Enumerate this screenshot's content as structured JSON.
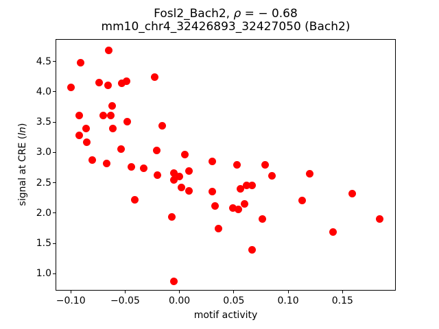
{
  "title": {
    "line1_prefix": "Fosl2_Bach2, ",
    "line1_rho": "ρ",
    "line1_suffix": " = − 0.68",
    "line2": "mm10_chr4_32426893_32427050 (Bach2)"
  },
  "axes": {
    "xlabel": "motif activity",
    "ylabel_prefix": "signal at CRE (",
    "ylabel_italic": "ln",
    "ylabel_suffix": ")"
  },
  "colors": {
    "marker": "#ff0000",
    "text": "#000000",
    "background": "#ffffff",
    "spine": "#000000"
  },
  "chart_data": {
    "type": "scatter",
    "title": "Fosl2_Bach2, ρ = − 0.68",
    "subtitle": "mm10_chr4_32426893_32427050 (Bach2)",
    "xlabel": "motif activity",
    "ylabel": "signal at CRE (ln)",
    "xlim": [
      -0.114,
      0.199
    ],
    "ylim": [
      0.72,
      4.87
    ],
    "xticks": [
      -0.1,
      -0.05,
      0.0,
      0.05,
      0.1,
      0.15
    ],
    "yticks": [
      1.0,
      1.5,
      2.0,
      2.5,
      3.0,
      3.5,
      4.0,
      4.5
    ],
    "grid": false,
    "legend": null,
    "marker_color": "#ff0000",
    "marker_diameter_px": 11,
    "points": [
      [
        -0.065,
        4.68
      ],
      [
        -0.091,
        4.48
      ],
      [
        -0.023,
        4.24
      ],
      [
        -0.074,
        4.15
      ],
      [
        -0.066,
        4.11
      ],
      [
        -0.053,
        4.14
      ],
      [
        -0.049,
        4.17
      ],
      [
        -0.1,
        4.07
      ],
      [
        -0.062,
        3.77
      ],
      [
        -0.092,
        3.61
      ],
      [
        -0.07,
        3.61
      ],
      [
        -0.063,
        3.61
      ],
      [
        -0.048,
        3.51
      ],
      [
        -0.061,
        3.39
      ],
      [
        -0.016,
        3.44
      ],
      [
        -0.086,
        3.39
      ],
      [
        -0.092,
        3.28
      ],
      [
        -0.085,
        3.17
      ],
      [
        -0.054,
        3.05
      ],
      [
        -0.021,
        3.03
      ],
      [
        0.005,
        2.97
      ],
      [
        -0.08,
        2.87
      ],
      [
        -0.067,
        2.82
      ],
      [
        0.03,
        2.85
      ],
      [
        -0.044,
        2.76
      ],
      [
        -0.033,
        2.74
      ],
      [
        -0.005,
        2.66
      ],
      [
        0.009,
        2.69
      ],
      [
        -0.02,
        2.63
      ],
      [
        0.0,
        2.6
      ],
      [
        -0.005,
        2.55
      ],
      [
        0.002,
        2.42
      ],
      [
        0.009,
        2.36
      ],
      [
        -0.041,
        2.22
      ],
      [
        -0.007,
        1.94
      ],
      [
        -0.005,
        0.87
      ],
      [
        0.03,
        2.35
      ],
      [
        0.033,
        2.12
      ],
      [
        0.036,
        1.74
      ],
      [
        0.053,
        2.8
      ],
      [
        0.056,
        2.4
      ],
      [
        0.049,
        2.08
      ],
      [
        0.054,
        2.06
      ],
      [
        0.06,
        2.15
      ],
      [
        0.062,
        2.46
      ],
      [
        0.067,
        2.46
      ],
      [
        0.079,
        2.8
      ],
      [
        0.085,
        2.61
      ],
      [
        0.076,
        1.9
      ],
      [
        0.067,
        1.39
      ],
      [
        0.113,
        2.21
      ],
      [
        0.12,
        2.65
      ],
      [
        0.141,
        1.69
      ],
      [
        0.159,
        2.32
      ],
      [
        0.184,
        1.9
      ]
    ]
  }
}
